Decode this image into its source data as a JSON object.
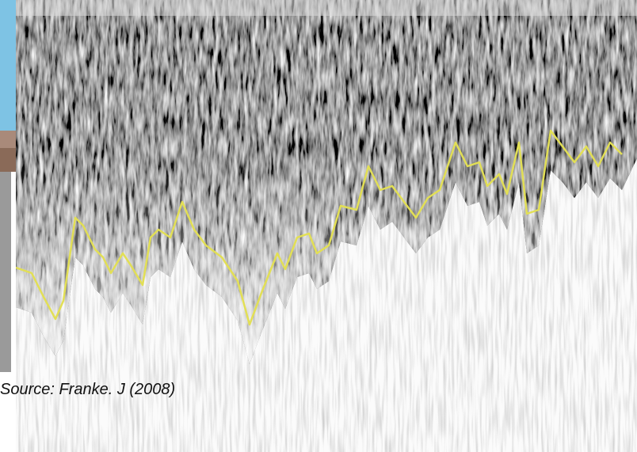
{
  "caption": "Source: Franke. J (2008)"
}
